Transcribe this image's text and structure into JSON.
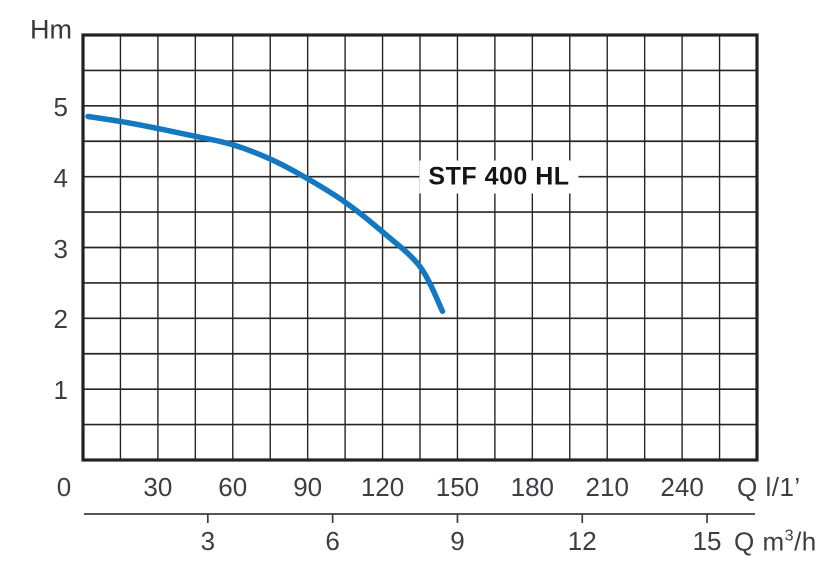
{
  "chart_data": {
    "type": "line",
    "title": "STF 400 HL",
    "ylabel": "Hm",
    "xlabel": "Q l/1’",
    "x2label": "Q m³/h",
    "xlim": [
      0,
      270
    ],
    "ylim": [
      0,
      6
    ],
    "x_grid_step": 15,
    "y_grid_step": 0.5,
    "x_ticks": [
      0,
      30,
      60,
      90,
      120,
      150,
      180,
      210,
      240
    ],
    "y_ticks": [
      1,
      2,
      3,
      4,
      5
    ],
    "x2_ticks": [
      3,
      6,
      9,
      12,
      15
    ],
    "x2_to_x_factor": 16.6667,
    "grid": true,
    "legend": "none",
    "series": [
      {
        "name": "STF 400 HL",
        "x": [
          2,
          15,
          30,
          45,
          60,
          75,
          90,
          105,
          120,
          135,
          144
        ],
        "y": [
          4.85,
          4.78,
          4.68,
          4.57,
          4.45,
          4.25,
          3.97,
          3.64,
          3.22,
          2.73,
          2.1
        ]
      }
    ],
    "colors": {
      "curve": "#1478c0",
      "grid": "#262626",
      "border": "#222222",
      "axis2": "#3d3d44",
      "text": "#3d3d44",
      "title": "#14141c",
      "background": "#ffffff"
    }
  }
}
